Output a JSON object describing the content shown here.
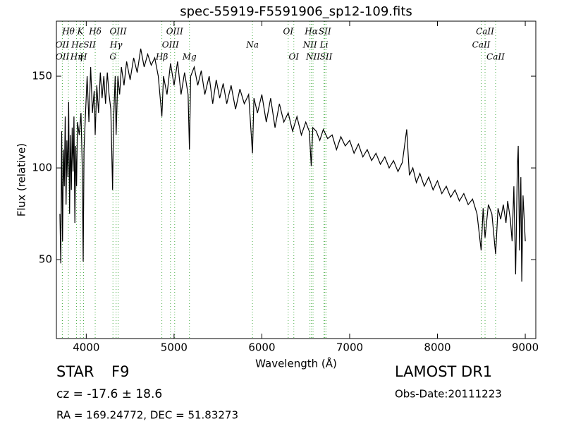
{
  "chart_data": {
    "type": "line",
    "title": "spec-55919-F5591906_sp12-109.fits",
    "x_label": "Wavelength (Å)",
    "y_label": "Flux (relative)",
    "xlim": [
      3660,
      9120
    ],
    "ylim": [
      7,
      180
    ],
    "xticks": [
      4000,
      5000,
      6000,
      7000,
      8000,
      9000
    ],
    "yticks": [
      50,
      100,
      150
    ],
    "color": "#000000",
    "line_color": "#4daf4a",
    "x": [
      3700,
      3710,
      3720,
      3730,
      3740,
      3750,
      3760,
      3770,
      3780,
      3790,
      3800,
      3810,
      3820,
      3830,
      3840,
      3850,
      3860,
      3870,
      3880,
      3890,
      3900,
      3920,
      3940,
      3955,
      3965,
      3975,
      3990,
      4010,
      4030,
      4050,
      4070,
      4090,
      4102,
      4120,
      4140,
      4160,
      4180,
      4200,
      4220,
      4240,
      4260,
      4280,
      4300,
      4310,
      4330,
      4340,
      4360,
      4380,
      4400,
      4430,
      4460,
      4500,
      4540,
      4580,
      4620,
      4660,
      4700,
      4740,
      4780,
      4820,
      4861,
      4880,
      4920,
      4960,
      5000,
      5040,
      5080,
      5120,
      5160,
      5175,
      5190,
      5230,
      5270,
      5310,
      5350,
      5400,
      5440,
      5480,
      5520,
      5560,
      5600,
      5650,
      5700,
      5750,
      5800,
      5850,
      5893,
      5910,
      5950,
      6000,
      6050,
      6100,
      6150,
      6200,
      6250,
      6300,
      6350,
      6400,
      6450,
      6500,
      6540,
      6563,
      6580,
      6620,
      6660,
      6700,
      6750,
      6800,
      6850,
      6900,
      6950,
      7000,
      7050,
      7100,
      7150,
      7200,
      7250,
      7300,
      7350,
      7400,
      7450,
      7500,
      7550,
      7600,
      7650,
      7680,
      7720,
      7760,
      7800,
      7850,
      7900,
      7950,
      8000,
      8050,
      8100,
      8150,
      8200,
      8250,
      8300,
      8350,
      8400,
      8450,
      8498,
      8520,
      8542,
      8580,
      8620,
      8662,
      8690,
      8720,
      8750,
      8780,
      8800,
      8830,
      8850,
      8870,
      8890,
      8910,
      8920,
      8935,
      8950,
      8960,
      8975,
      8990,
      9000
    ],
    "values": [
      75,
      48,
      120,
      60,
      110,
      90,
      128,
      80,
      115,
      95,
      136,
      75,
      118,
      88,
      122,
      98,
      128,
      70,
      112,
      90,
      125,
      118,
      130,
      100,
      49,
      110,
      128,
      150,
      125,
      155,
      130,
      142,
      118,
      145,
      130,
      152,
      138,
      150,
      135,
      152,
      140,
      132,
      88,
      125,
      150,
      118,
      150,
      140,
      155,
      145,
      158,
      148,
      160,
      152,
      165,
      155,
      162,
      156,
      160,
      150,
      128,
      150,
      140,
      157,
      145,
      158,
      140,
      152,
      140,
      110,
      150,
      155,
      145,
      153,
      140,
      150,
      135,
      148,
      138,
      146,
      135,
      145,
      132,
      143,
      135,
      140,
      108,
      138,
      130,
      140,
      125,
      138,
      122,
      135,
      125,
      130,
      120,
      128,
      118,
      125,
      120,
      101,
      122,
      120,
      115,
      121,
      116,
      118,
      110,
      117,
      112,
      115,
      108,
      113,
      106,
      110,
      104,
      108,
      102,
      106,
      100,
      104,
      98,
      103,
      121,
      96,
      100,
      92,
      97,
      90,
      95,
      88,
      93,
      86,
      90,
      84,
      88,
      82,
      86,
      80,
      83,
      75,
      55,
      78,
      62,
      80,
      75,
      53,
      78,
      72,
      80,
      70,
      82,
      72,
      60,
      90,
      42,
      100,
      112,
      55,
      95,
      38,
      85,
      70,
      60
    ],
    "line_labels": [
      [
        {
          "x": 3797,
          "label": "Hθ"
        },
        {
          "x": 3933,
          "label": "K"
        },
        {
          "x": 4102,
          "label": "Hδ"
        },
        {
          "x": 4363,
          "label": "OIII"
        },
        {
          "x": 5007,
          "label": "OIII"
        },
        {
          "x": 6300,
          "label": "OI"
        },
        {
          "x": 6563,
          "label": "Hα"
        },
        {
          "x": 6717,
          "label": "SII"
        },
        {
          "x": 8542,
          "label": "CaII"
        }
      ],
      [
        {
          "x": 3727,
          "label": "OII"
        },
        {
          "x": 3970,
          "label": "HεSII"
        },
        {
          "x": 4340,
          "label": "Hγ"
        },
        {
          "x": 4959,
          "label": "OIII"
        },
        {
          "x": 5893,
          "label": "Na"
        },
        {
          "x": 6548,
          "label": "NII"
        },
        {
          "x": 6708,
          "label": "Li"
        },
        {
          "x": 8498,
          "label": "CaII"
        }
      ],
      [
        {
          "x": 3729,
          "label": "OII"
        },
        {
          "x": 3889,
          "label": "Hη"
        },
        {
          "x": 3968,
          "label": "H"
        },
        {
          "x": 4304,
          "label": "G"
        },
        {
          "x": 4861,
          "label": "Hβ"
        },
        {
          "x": 5175,
          "label": "Mg"
        },
        {
          "x": 6364,
          "label": "OI"
        },
        {
          "x": 6583,
          "label": "NII"
        },
        {
          "x": 6731,
          "label": "SII"
        },
        {
          "x": 8662,
          "label": "CaII"
        }
      ]
    ]
  },
  "info": {
    "object": "STAR",
    "subclass": "F9",
    "cz": "cz = -17.6 ± 18.6",
    "coords": "RA = 169.24772, DEC = 51.83273",
    "survey": "LAMOST DR1",
    "obs_date": "Obs-Date:20111223"
  }
}
